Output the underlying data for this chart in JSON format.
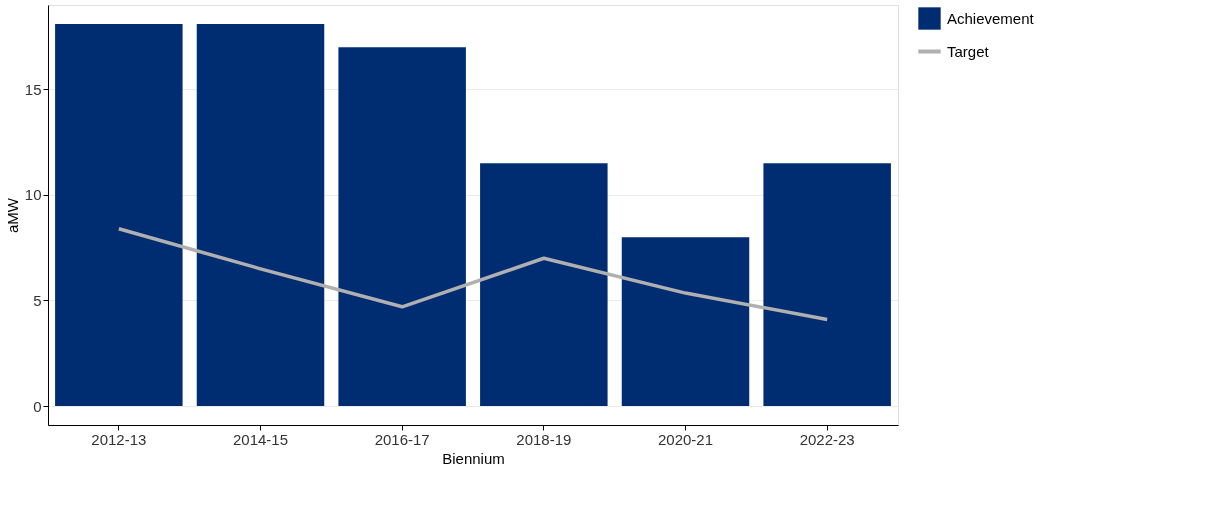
{
  "chart_data": {
    "type": "bar",
    "xlabel": "Biennium",
    "ylabel": "aMW",
    "categories": [
      "2012-13",
      "2014-15",
      "2016-17",
      "2018-19",
      "2020-21",
      "2022-23"
    ],
    "series": [
      {
        "name": "Achievement",
        "color": "#002d72",
        "values": [
          18.1,
          18.1,
          17.0,
          11.5,
          8.0,
          11.5
        ]
      },
      {
        "name": "Target",
        "type": "line",
        "color": "#b0b0b0",
        "values": [
          8.4,
          6.5,
          4.7,
          7.0,
          5.35,
          4.1
        ]
      }
    ],
    "ylim": [
      -0.9,
      19
    ],
    "yticks": [
      0,
      5,
      10,
      15
    ],
    "grid": "y",
    "legend": "right"
  }
}
